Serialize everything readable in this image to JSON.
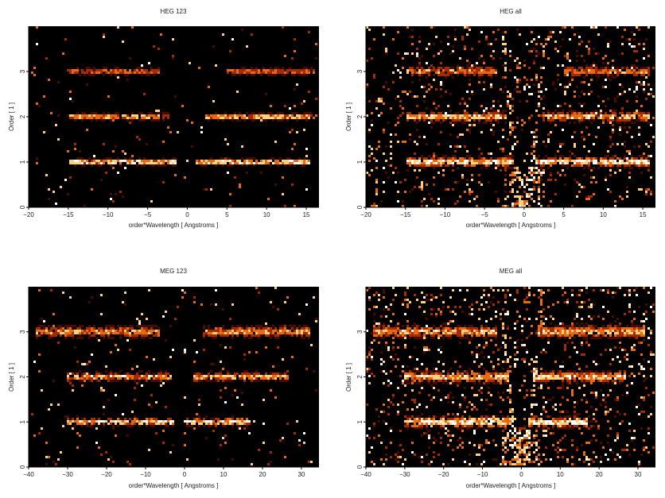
{
  "chart_data": [
    {
      "type": "heatmap",
      "title": "HEG 123",
      "xlabel": "order*Wavelength [ Angstroms ]",
      "ylabel": "Order [ 1 ]",
      "xlim": [
        -20,
        16.6
      ],
      "ylim": [
        0,
        4
      ],
      "xticks": [
        -20,
        -15,
        -10,
        -5,
        0,
        5,
        10,
        15
      ],
      "yticks": [
        0,
        1,
        2,
        3
      ],
      "background": "#000000",
      "colormap": [
        "#000000",
        "#4a0a00",
        "#a52a00",
        "#e86a10",
        "#ffd080",
        "#ffffff"
      ],
      "bands": [
        {
          "order": 1,
          "segments": [
            [
              -14.8,
              -1.3
            ],
            [
              1.2,
              15.6
            ]
          ],
          "intensity": 1.0,
          "halo": 0.08
        },
        {
          "order": 2,
          "segments": [
            [
              -15.0,
              -2.2
            ],
            [
              2.3,
              16.0
            ]
          ],
          "intensity": 0.8,
          "halo": 0.09
        },
        {
          "order": 3,
          "segments": [
            [
              -15.0,
              -3.5
            ],
            [
              4.9,
              16.0
            ]
          ],
          "intensity": 0.6,
          "halo": 0.09
        }
      ],
      "scatter_density": 0.02,
      "zero_order_wedge": false
    },
    {
      "type": "heatmap",
      "title": "HEG all",
      "xlabel": "order*Wavelength [ Angstroms ]",
      "ylabel": "Order [ 1 ]",
      "xlim": [
        -20,
        16.6
      ],
      "ylim": [
        0,
        4
      ],
      "xticks": [
        -20,
        -15,
        -10,
        -5,
        0,
        5,
        10,
        15
      ],
      "yticks": [
        0,
        1,
        2,
        3
      ],
      "background": "#000000",
      "colormap": [
        "#000000",
        "#4a0a00",
        "#a52a00",
        "#e86a10",
        "#ffd080",
        "#ffffff"
      ],
      "bands": [
        {
          "order": 1,
          "segments": [
            [
              -15.0,
              -1.4
            ],
            [
              1.4,
              16.0
            ]
          ],
          "intensity": 1.0,
          "halo": 0.12
        },
        {
          "order": 2,
          "segments": [
            [
              -15.0,
              -2.3
            ],
            [
              2.3,
              16.0
            ]
          ],
          "intensity": 0.85,
          "halo": 0.12
        },
        {
          "order": 3,
          "segments": [
            [
              -15.0,
              -3.5
            ],
            [
              4.9,
              16.0
            ]
          ],
          "intensity": 0.7,
          "halo": 0.12
        }
      ],
      "scatter_density": 0.1,
      "zero_order_wedge": true
    },
    {
      "type": "heatmap",
      "title": "MEG 123",
      "xlabel": "order*Wavelength [ Angstroms ]",
      "ylabel": "Order [ 1 ]",
      "xlim": [
        -40,
        34.5
      ],
      "ylim": [
        0,
        4
      ],
      "xticks": [
        -40,
        -30,
        -20,
        -10,
        0,
        10,
        20,
        30
      ],
      "yticks": [
        0,
        1,
        2,
        3
      ],
      "background": "#000000",
      "colormap": [
        "#000000",
        "#4a0a00",
        "#a52a00",
        "#e86a10",
        "#ffd080",
        "#ffffff"
      ],
      "bands": [
        {
          "order": 1,
          "segments": [
            [
              -30.0,
              -2.5
            ],
            [
              0.0,
              17.0
            ]
          ],
          "intensity": 1.0,
          "halo": 0.1
        },
        {
          "order": 2,
          "segments": [
            [
              -30.0,
              -3.0
            ],
            [
              2.0,
              27.0
            ]
          ],
          "intensity": 0.8,
          "halo": 0.11
        },
        {
          "order": 3,
          "segments": [
            [
              -38.0,
              -6.5
            ],
            [
              4.5,
              32.0
            ]
          ],
          "intensity": 0.75,
          "halo": 0.14
        }
      ],
      "scatter_density": 0.03,
      "zero_order_wedge": false
    },
    {
      "type": "heatmap",
      "title": "MEG all",
      "xlabel": "order*Wavelength [ Angstroms ]",
      "ylabel": "Order [ 1 ]",
      "xlim": [
        -40,
        34.5
      ],
      "ylim": [
        0,
        4
      ],
      "xticks": [
        -40,
        -30,
        -20,
        -10,
        0,
        10,
        20,
        30
      ],
      "yticks": [
        0,
        1,
        2,
        3
      ],
      "background": "#000000",
      "colormap": [
        "#000000",
        "#4a0a00",
        "#a52a00",
        "#e86a10",
        "#ffd080",
        "#ffffff"
      ],
      "bands": [
        {
          "order": 1,
          "segments": [
            [
              -30.0,
              -2.5
            ],
            [
              1.5,
              17.0
            ]
          ],
          "intensity": 1.0,
          "halo": 0.14
        },
        {
          "order": 2,
          "segments": [
            [
              -30.0,
              -3.0
            ],
            [
              2.0,
              27.0
            ]
          ],
          "intensity": 0.85,
          "halo": 0.15
        },
        {
          "order": 3,
          "segments": [
            [
              -38.0,
              -6.5
            ],
            [
              4.5,
              32.0
            ]
          ],
          "intensity": 0.8,
          "halo": 0.16
        }
      ],
      "scatter_density": 0.12,
      "zero_order_wedge": true
    }
  ]
}
